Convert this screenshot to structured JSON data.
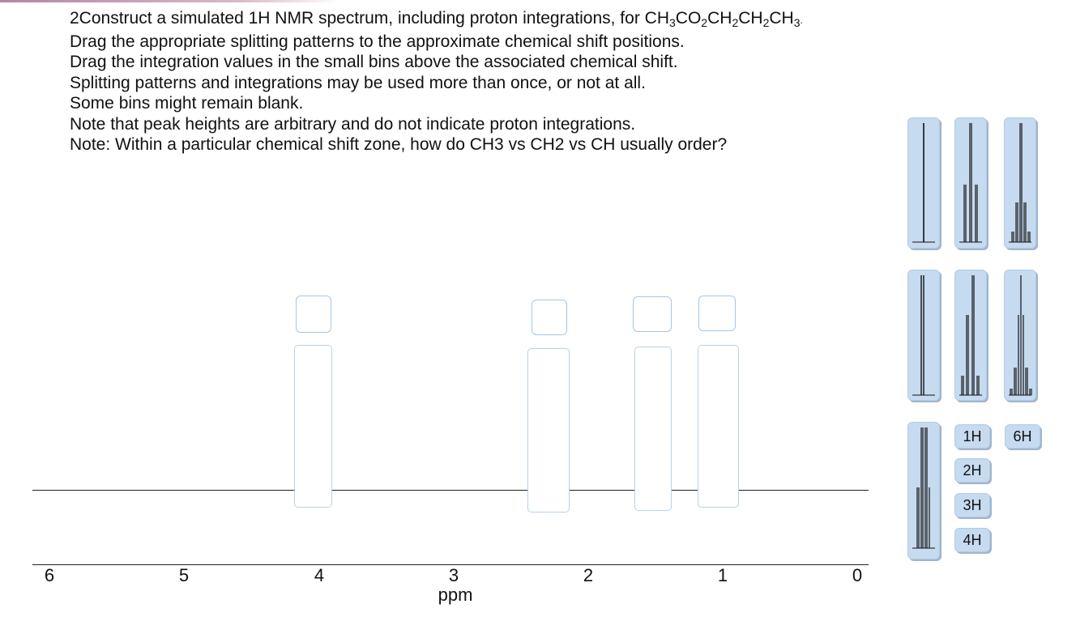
{
  "instructions": {
    "line1_prefix": "2Construct a simulated 1H NMR spectrum, including proton integrations, for ",
    "formula": {
      "p1": "CH",
      "s1": "3",
      "p2": "CO",
      "s2": "2",
      "p3": "CH",
      "s3": "2",
      "p4": "CH",
      "s4": "2",
      "p5": "CH",
      "s5": "3",
      "end": "."
    },
    "line2": "Drag the appropriate splitting patterns to the approximate chemical shift positions.",
    "line3": "Drag the integration values in the small bins above the associated chemical shift.",
    "line4": "Splitting patterns and integrations may be used more than once, or not at all.",
    "line5": "Some bins might remain blank.",
    "line6": "Note that peak heights are arbitrary and do not indicate proton integrations.",
    "line7": "Note:  Within a particular chemical shift zone, how do CH3 vs CH2 vs CH usually order?"
  },
  "axis": {
    "ticks": [
      "6",
      "5",
      "4",
      "3",
      "2",
      "1",
      "0"
    ],
    "label": "ppm"
  },
  "splitting_patterns": [
    {
      "name": "singlet",
      "lines": 1
    },
    {
      "name": "triplet",
      "lines": 3
    },
    {
      "name": "quintet",
      "lines": 5
    },
    {
      "name": "doublet",
      "lines": 2
    },
    {
      "name": "quartet",
      "lines": 4
    },
    {
      "name": "sextet",
      "lines": 6
    },
    {
      "name": "multiplet",
      "lines": 7
    }
  ],
  "integration_values": [
    "1H",
    "2H",
    "3H",
    "4H",
    "6H"
  ]
}
